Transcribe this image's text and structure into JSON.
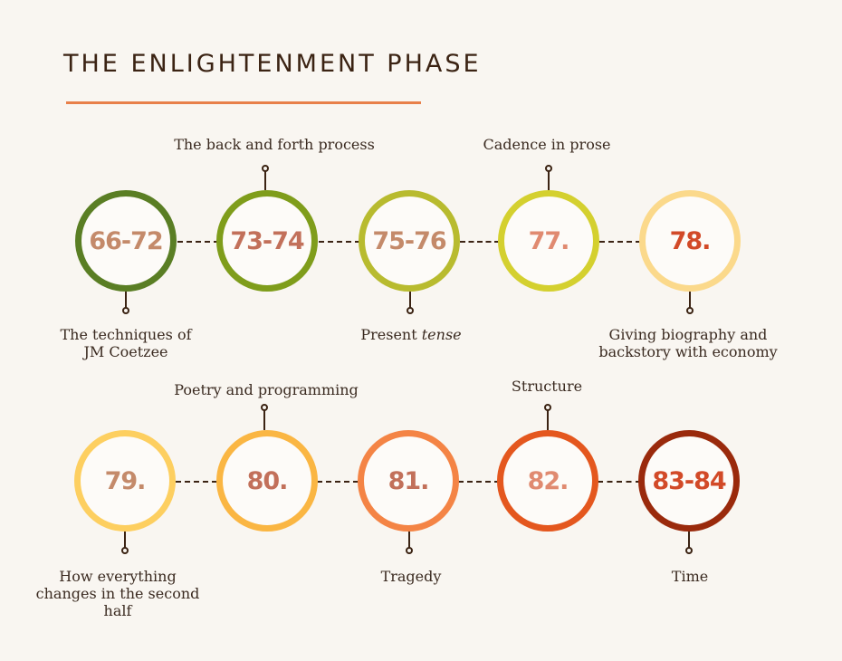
{
  "title": "THE ENLIGHTENMENT PHASE",
  "row1": [
    {
      "label": "66-72",
      "ring": "#5a7e24",
      "text": "#c48a6a",
      "caption_below": [
        "The techniques of",
        "JM Coetzee"
      ]
    },
    {
      "label": "73-74",
      "ring": "#7f9d1b",
      "text": "#c2705a",
      "caption_above": "The back and forth process"
    },
    {
      "label": "75-76",
      "ring": "#b8bb2f",
      "text": "#c48a6a",
      "caption_below_pre": "Present ",
      "caption_below_em": "tense"
    },
    {
      "label": "77.",
      "ring": "#d4d02f",
      "text": "#e08a70",
      "caption_above": "Cadence in prose"
    },
    {
      "label": "78.",
      "ring": "#fbd98b",
      "text": "#d24a28",
      "caption_below": [
        "Giving biography and",
        "backstory with economy"
      ]
    }
  ],
  "row2": [
    {
      "label": "79.",
      "ring": "#fdcf60",
      "text": "#c48a6a",
      "caption_below": [
        "How everything",
        "changes in the second",
        "half"
      ]
    },
    {
      "label": "80.",
      "ring": "#fab643",
      "text": "#c2705a",
      "caption_above": "Poetry and programming"
    },
    {
      "label": "81.",
      "ring": "#f48445",
      "text": "#c2705a",
      "caption_below": [
        "Tragedy"
      ]
    },
    {
      "label": "82.",
      "ring": "#e4571e",
      "text": "#e08a70",
      "caption_above": "Structure"
    },
    {
      "label": "83-84",
      "ring": "#9a2a0c",
      "text": "#d24a28",
      "caption_below": [
        "Time"
      ]
    }
  ]
}
